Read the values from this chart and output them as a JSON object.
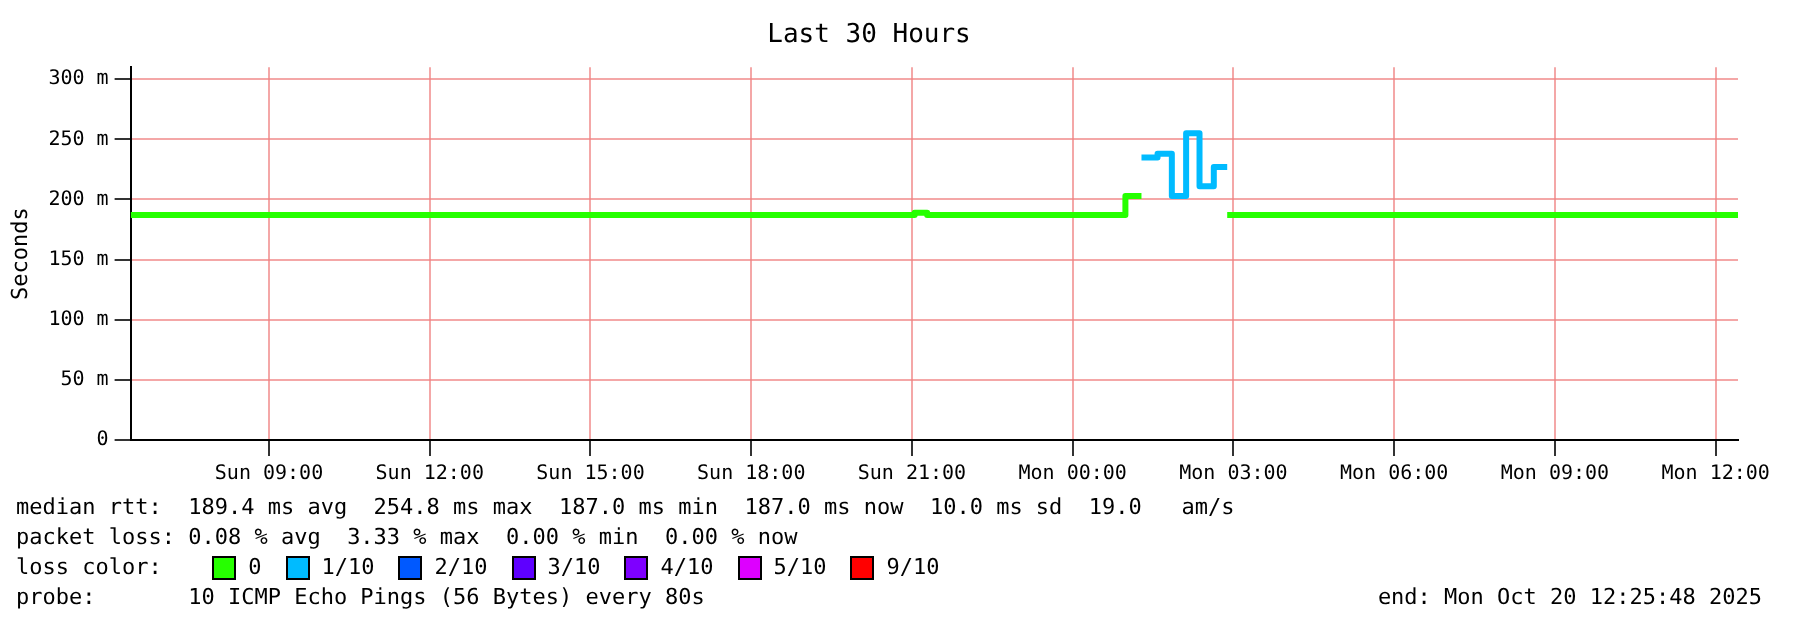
{
  "chart_data": {
    "type": "step",
    "title": "Last 30 Hours",
    "ylabel": "Seconds",
    "series": [
      {
        "name": "0",
        "color": "#26ff00",
        "x": [
          "2025-10-19T06:25",
          "2025-10-19T21:03",
          "2025-10-19T21:17",
          "2025-10-20T00:59",
          "2025-10-20T01:17",
          "2025-10-20T02:00",
          "2025-10-20T02:53",
          "2025-10-20T12:25"
        ],
        "values": [
          187,
          189,
          187,
          203,
          203,
          null,
          187,
          187
        ]
      },
      {
        "name": "1/10",
        "color": "#00bbff",
        "x": [
          "2025-10-20T01:17",
          "2025-10-20T01:35",
          "2025-10-20T01:51",
          "2025-10-20T02:07",
          "2025-10-20T02:22",
          "2025-10-20T02:38",
          "2025-10-20T02:53"
        ],
        "values": [
          235,
          238,
          203,
          255,
          211,
          227,
          227
        ]
      },
      {
        "name": "2/10",
        "color": "#0059ff"
      },
      {
        "name": "3/10",
        "color": "#5e00ff"
      },
      {
        "name": "4/10",
        "color": "#7e00ff"
      },
      {
        "name": "5/10",
        "color": "#dd00ff"
      },
      {
        "name": "9/10",
        "color": "#ff0000"
      }
    ],
    "legend": "bottom",
    "legend_title": "loss color:",
    "xlim": [
      "2025-10-19T06:25",
      "2025-10-20T12:25"
    ],
    "xticks": [
      {
        "value": "2025-10-19T09:00",
        "label": "Sun 09:00"
      },
      {
        "value": "2025-10-19T12:00",
        "label": "Sun 12:00"
      },
      {
        "value": "2025-10-19T15:00",
        "label": "Sun 15:00"
      },
      {
        "value": "2025-10-19T18:00",
        "label": "Sun 18:00"
      },
      {
        "value": "2025-10-19T21:00",
        "label": "Sun 21:00"
      },
      {
        "value": "2025-10-20T00:00",
        "label": "Mon 00:00"
      },
      {
        "value": "2025-10-20T03:00",
        "label": "Mon 03:00"
      },
      {
        "value": "2025-10-20T06:00",
        "label": "Mon 06:00"
      },
      {
        "value": "2025-10-20T09:00",
        "label": "Mon 09:00"
      },
      {
        "value": "2025-10-20T12:00",
        "label": "Mon 12:00"
      }
    ],
    "ylim": [
      0,
      310
    ],
    "yticks": [
      0,
      {
        "value": 50,
        "label": "50 m"
      },
      {
        "value": 100,
        "label": "100 m"
      },
      {
        "value": 150,
        "label": "150 m"
      },
      {
        "value": 200,
        "label": "200 m"
      },
      {
        "value": 250,
        "label": "250 m"
      },
      {
        "value": 300,
        "label": "300 m"
      }
    ],
    "grid": true,
    "marker": "none",
    "line_style": "solid",
    "annotations": [
      "median rtt:  189.4 ms avg  254.8 ms max  187.0 ms min  187.0 ms now  10.0 ms sd  19.0   am/s",
      "packet loss: 0.08 % avg  3.33 % max  0.00 % min  0.00 % now",
      "probe:       10 ICMP Echo Pings (56 Bytes) every 80s",
      "end: Mon Oct 20 12:25:48 2025"
    ]
  }
}
